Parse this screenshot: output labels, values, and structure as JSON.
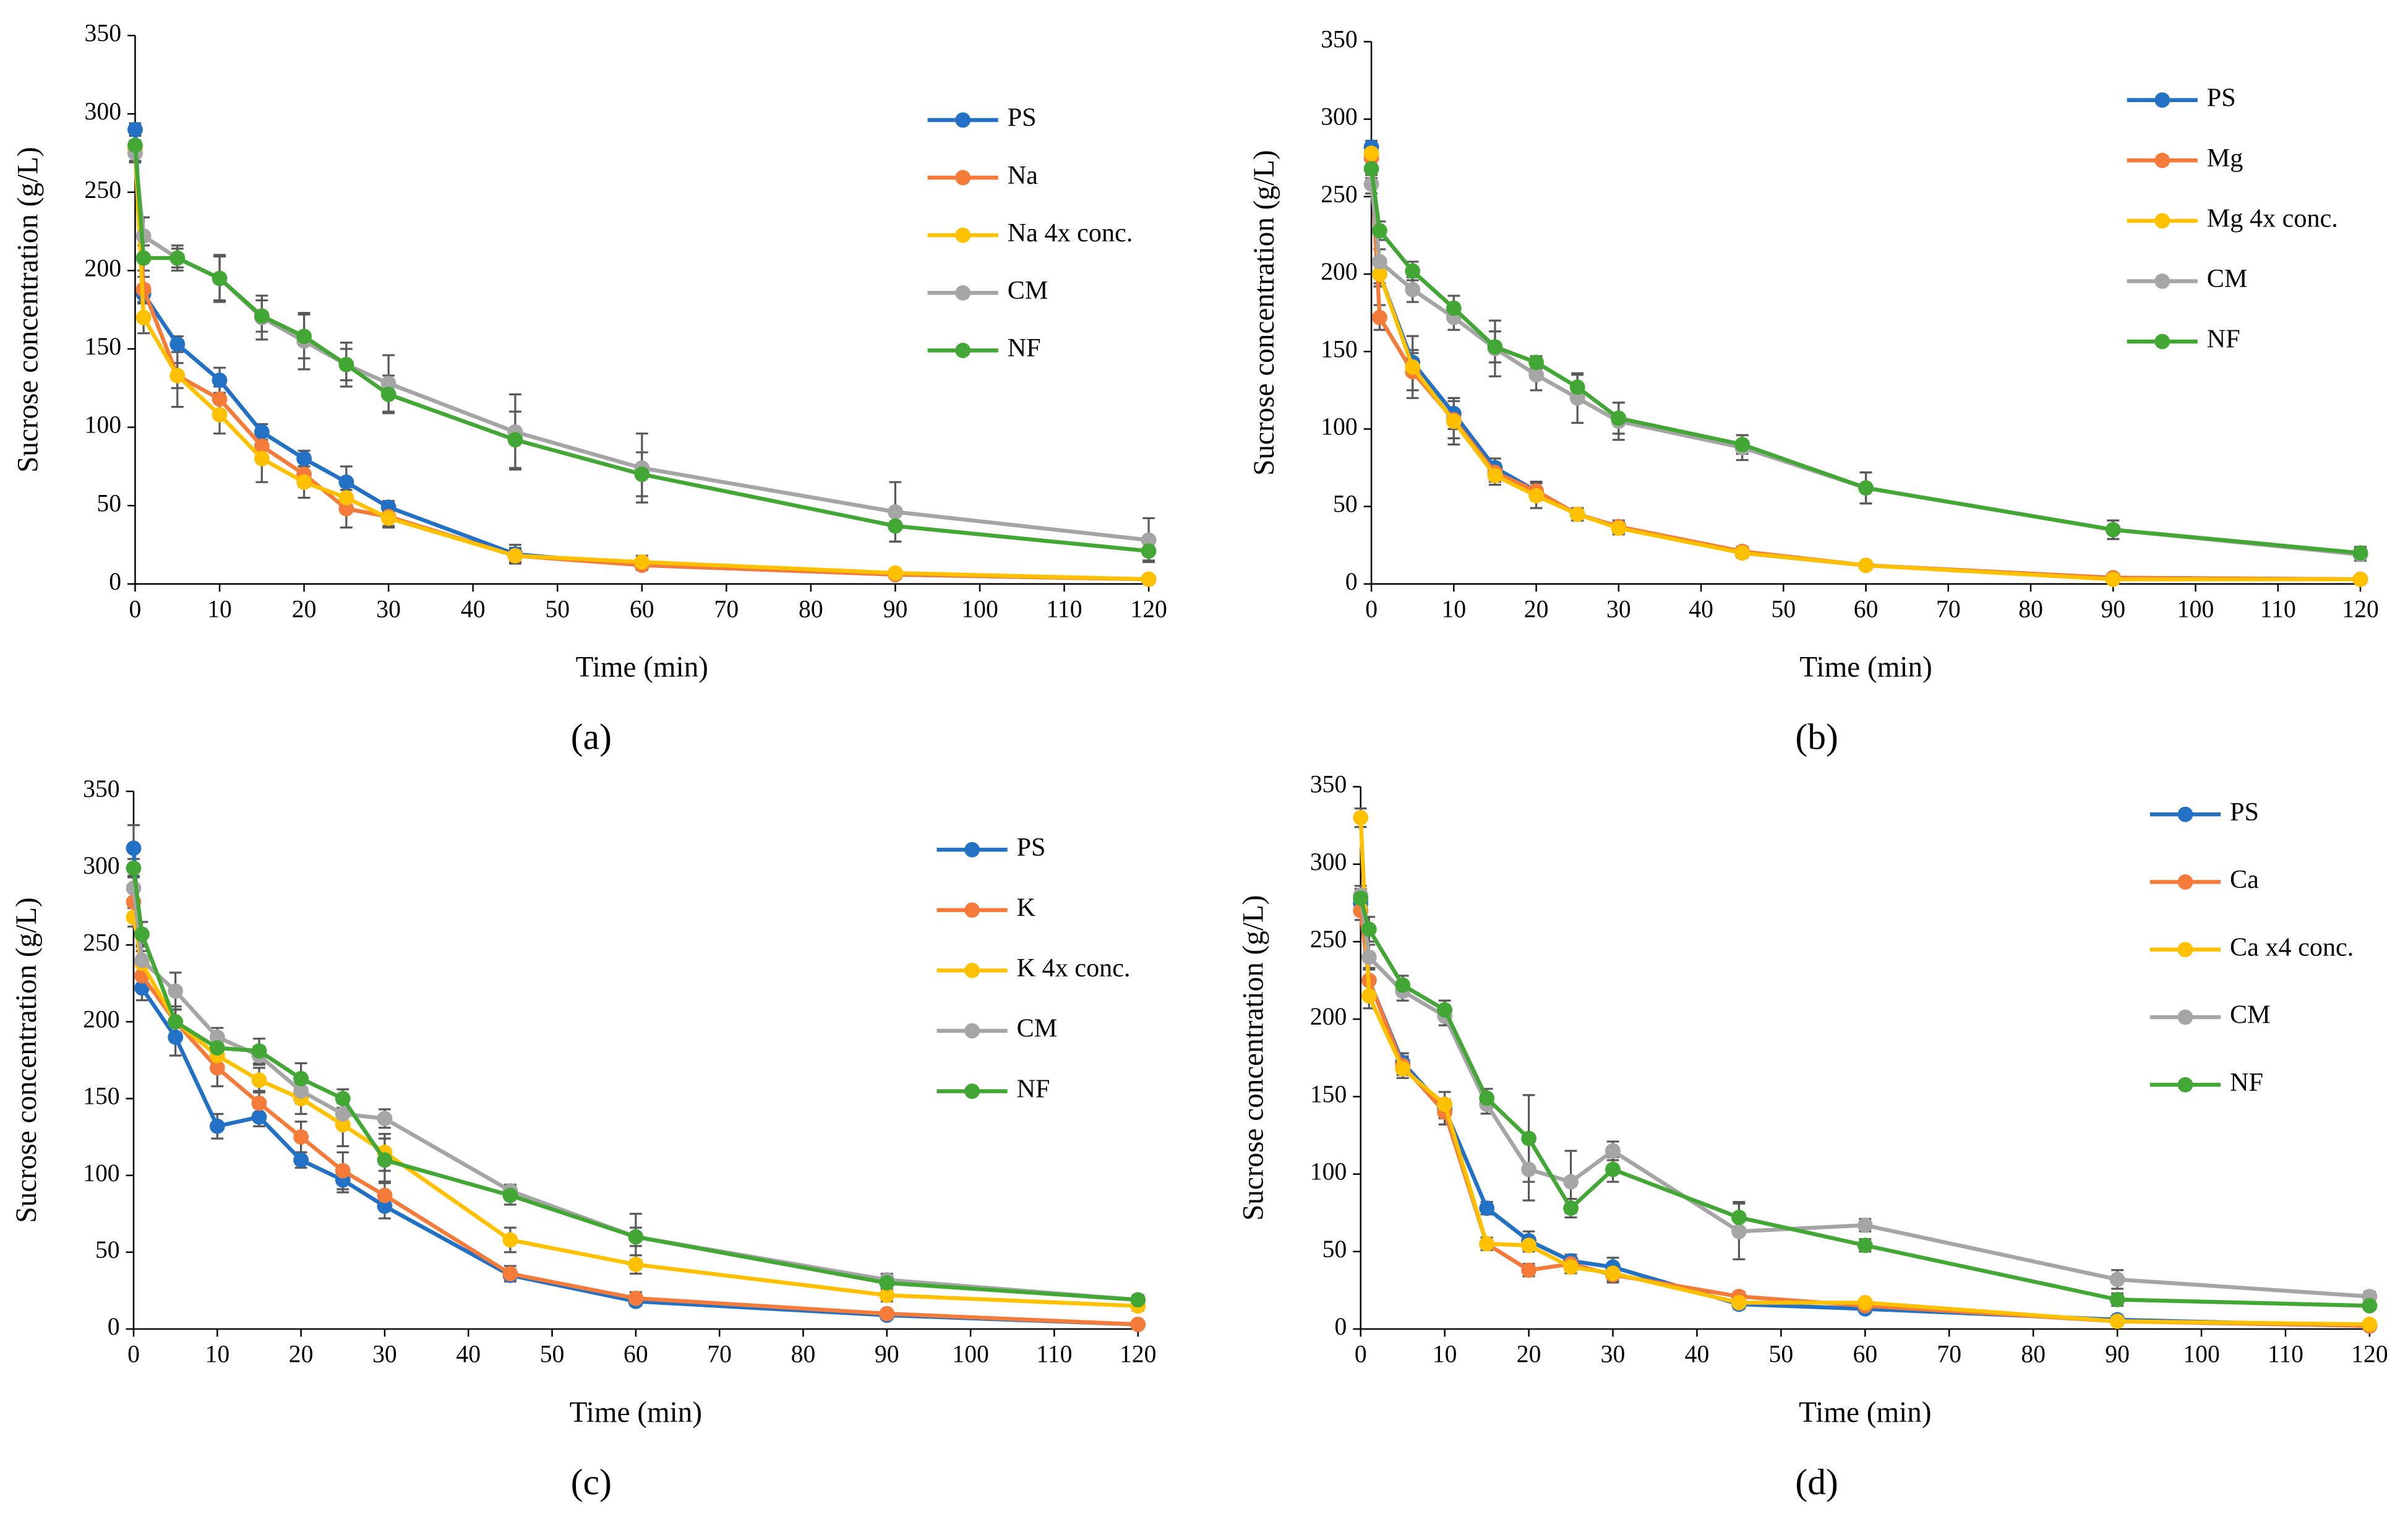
{
  "chart_data": [
    {
      "type": "line",
      "panel_label": "(a)",
      "x_label": "Time (min)",
      "y_label": "Sucrose concentration (g/L)",
      "x": [
        0,
        1,
        5,
        10,
        15,
        20,
        25,
        30,
        45,
        60,
        90,
        120
      ],
      "xlim": [
        0,
        120
      ],
      "xticks": [
        0,
        10,
        20,
        30,
        40,
        50,
        60,
        70,
        80,
        90,
        100,
        110,
        120
      ],
      "ylim": [
        0,
        350
      ],
      "yticks": [
        0,
        50,
        100,
        150,
        200,
        250,
        300,
        350
      ],
      "legend": "right",
      "series": [
        {
          "name": "PS",
          "color": "#2271c5",
          "values": [
            290,
            185,
            153,
            130,
            97,
            80,
            65,
            49,
            19,
            12,
            6,
            3
          ],
          "errors": [
            4,
            6,
            5,
            8,
            5,
            5,
            10,
            4,
            6,
            3,
            2,
            1
          ]
        },
        {
          "name": "Na",
          "color": "#f47b3a",
          "values": [
            275,
            188,
            133,
            118,
            88,
            70,
            48,
            43,
            18,
            12,
            6,
            3
          ],
          "errors": [
            5,
            8,
            8,
            8,
            8,
            8,
            12,
            6,
            5,
            3,
            2,
            1
          ]
        },
        {
          "name": "Na 4x conc.",
          "color": "#ffc000",
          "values": [
            278,
            170,
            133,
            108,
            80,
            65,
            55,
            42,
            18,
            14,
            7,
            3
          ],
          "errors": [
            5,
            10,
            20,
            12,
            15,
            10,
            8,
            6,
            4,
            4,
            2,
            1
          ]
        },
        {
          "name": "CM",
          "color": "#a5a5a5",
          "values": [
            275,
            222,
            208,
            195,
            170,
            155,
            140,
            128,
            97,
            74,
            46,
            28
          ],
          "errors": [
            6,
            12,
            8,
            15,
            14,
            18,
            14,
            18,
            24,
            22,
            19,
            14
          ]
        },
        {
          "name": "NF",
          "color": "#43a735",
          "values": [
            280,
            208,
            208,
            195,
            171,
            158,
            140,
            121,
            92,
            70,
            37,
            21
          ],
          "errors": [
            6,
            8,
            6,
            14,
            10,
            14,
            10,
            12,
            18,
            14,
            10,
            6
          ]
        }
      ]
    },
    {
      "type": "line",
      "panel_label": "(b)",
      "x_label": "Time (min)",
      "y_label": "Sucrose concentration (g/L)",
      "x": [
        0,
        1,
        5,
        10,
        15,
        20,
        25,
        30,
        45,
        60,
        90,
        120
      ],
      "xlim": [
        0,
        120
      ],
      "xticks": [
        0,
        10,
        20,
        30,
        40,
        50,
        60,
        70,
        80,
        90,
        100,
        110,
        120
      ],
      "ylim": [
        0,
        350
      ],
      "yticks": [
        0,
        50,
        100,
        150,
        200,
        250,
        300,
        350
      ],
      "legend": "right",
      "series": [
        {
          "name": "PS",
          "color": "#2271c5",
          "values": [
            282,
            200,
            143,
            110,
            75,
            60,
            45,
            37,
            20,
            12,
            4,
            3
          ],
          "errors": [
            4,
            6,
            8,
            10,
            6,
            5,
            4,
            4,
            3,
            2,
            1,
            1
          ]
        },
        {
          "name": "Mg",
          "color": "#f47b3a",
          "values": [
            275,
            172,
            137,
            106,
            72,
            60,
            45,
            37,
            21,
            12,
            4,
            3
          ],
          "errors": [
            5,
            8,
            12,
            12,
            6,
            6,
            4,
            4,
            3,
            2,
            1,
            1
          ]
        },
        {
          "name": "Mg 4x conc.",
          "color": "#ffc000",
          "values": [
            278,
            200,
            140,
            105,
            70,
            57,
            45,
            36,
            20,
            12,
            3,
            3
          ],
          "errors": [
            5,
            8,
            20,
            15,
            6,
            8,
            4,
            4,
            3,
            2,
            1,
            1
          ]
        },
        {
          "name": "CM",
          "color": "#a5a5a5",
          "values": [
            258,
            208,
            190,
            172,
            152,
            135,
            120,
            105,
            88,
            62,
            35,
            19
          ],
          "errors": [
            6,
            8,
            8,
            8,
            18,
            10,
            16,
            12,
            8,
            10,
            6,
            4
          ]
        },
        {
          "name": "NF",
          "color": "#43a735",
          "values": [
            268,
            228,
            202,
            178,
            153,
            143,
            127,
            107,
            90,
            62,
            35,
            20
          ],
          "errors": [
            6,
            6,
            6,
            8,
            10,
            4,
            8,
            10,
            6,
            10,
            6,
            4
          ]
        }
      ]
    },
    {
      "type": "line",
      "panel_label": "(c)",
      "x_label": "Time (min)",
      "y_label": "Sucrose concentration (g/L)",
      "x": [
        0,
        1,
        5,
        10,
        15,
        20,
        25,
        30,
        45,
        60,
        90,
        120
      ],
      "xlim": [
        0,
        120
      ],
      "xticks": [
        0,
        10,
        20,
        30,
        40,
        50,
        60,
        70,
        80,
        90,
        100,
        110,
        120
      ],
      "ylim": [
        0,
        350
      ],
      "yticks": [
        0,
        50,
        100,
        150,
        200,
        250,
        300,
        350
      ],
      "legend": "right",
      "series": [
        {
          "name": "PS",
          "color": "#2271c5",
          "values": [
            313,
            222,
            190,
            132,
            138,
            110,
            97,
            80,
            35,
            18,
            9,
            3
          ],
          "errors": [
            15,
            8,
            12,
            8,
            6,
            5,
            8,
            8,
            4,
            3,
            2,
            1
          ]
        },
        {
          "name": "K",
          "color": "#f47b3a",
          "values": [
            278,
            230,
            200,
            170,
            147,
            125,
            103,
            87,
            36,
            20,
            10,
            3
          ],
          "errors": [
            8,
            10,
            8,
            12,
            8,
            10,
            12,
            8,
            5,
            4,
            2,
            1
          ]
        },
        {
          "name": "K 4x conc.",
          "color": "#ffc000",
          "values": [
            268,
            238,
            200,
            178,
            162,
            150,
            133,
            115,
            58,
            42,
            22,
            15
          ],
          "errors": [
            6,
            8,
            8,
            8,
            8,
            10,
            14,
            12,
            8,
            6,
            4,
            3
          ]
        },
        {
          "name": "CM",
          "color": "#a5a5a5",
          "values": [
            287,
            240,
            220,
            190,
            178,
            155,
            140,
            137,
            90,
            60,
            32,
            19
          ],
          "errors": [
            8,
            10,
            12,
            6,
            6,
            8,
            8,
            6,
            4,
            6,
            4,
            3
          ]
        },
        {
          "name": "NF",
          "color": "#43a735",
          "values": [
            300,
            257,
            200,
            183,
            181,
            163,
            150,
            110,
            87,
            60,
            30,
            19
          ],
          "errors": [
            6,
            8,
            10,
            6,
            8,
            10,
            6,
            14,
            6,
            15,
            5,
            3
          ]
        }
      ]
    },
    {
      "type": "line",
      "panel_label": "(d)",
      "x_label": "Time (min)",
      "y_label": "Sucrose concentration (g/L)",
      "x": [
        0,
        1,
        5,
        10,
        15,
        20,
        25,
        30,
        45,
        60,
        90,
        120
      ],
      "xlim": [
        0,
        120
      ],
      "xticks": [
        0,
        10,
        20,
        30,
        40,
        50,
        60,
        70,
        80,
        90,
        100,
        110,
        120
      ],
      "ylim": [
        0,
        350
      ],
      "yticks": [
        0,
        50,
        100,
        150,
        200,
        250,
        300,
        350
      ],
      "legend": "right",
      "series": [
        {
          "name": "PS",
          "color": "#2271c5",
          "values": [
            275,
            225,
            172,
            142,
            78,
            57,
            44,
            40,
            16,
            13,
            6,
            2
          ],
          "errors": [
            6,
            8,
            6,
            6,
            4,
            6,
            4,
            6,
            3,
            2,
            2,
            1
          ]
        },
        {
          "name": "Ca",
          "color": "#f47b3a",
          "values": [
            270,
            225,
            170,
            140,
            55,
            38,
            42,
            35,
            21,
            15,
            5,
            2
          ],
          "errors": [
            6,
            8,
            6,
            8,
            4,
            4,
            4,
            4,
            3,
            2,
            2,
            1
          ]
        },
        {
          "name": "Ca x4 conc.",
          "color": "#ffc000",
          "values": [
            330,
            215,
            168,
            145,
            55,
            54,
            40,
            36,
            17,
            17,
            5,
            3
          ],
          "errors": [
            6,
            8,
            6,
            8,
            4,
            4,
            4,
            6,
            3,
            2,
            2,
            1
          ]
        },
        {
          "name": "CM",
          "color": "#a5a5a5",
          "values": [
            280,
            240,
            218,
            202,
            145,
            103,
            95,
            115,
            63,
            67,
            32,
            21
          ],
          "errors": [
            6,
            8,
            6,
            6,
            6,
            20,
            20,
            6,
            18,
            4,
            6,
            3
          ]
        },
        {
          "name": "NF",
          "color": "#43a735",
          "values": [
            278,
            258,
            222,
            206,
            149,
            123,
            78,
            103,
            72,
            54,
            19,
            15
          ],
          "errors": [
            6,
            8,
            6,
            6,
            6,
            28,
            6,
            8,
            10,
            4,
            4,
            2
          ]
        }
      ]
    }
  ]
}
